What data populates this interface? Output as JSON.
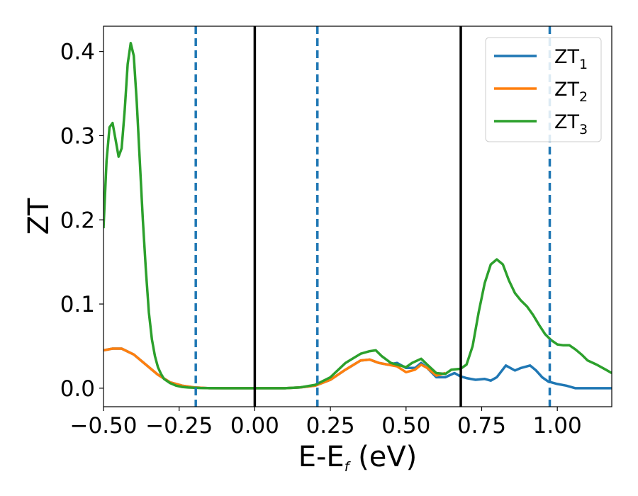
{
  "chart_data": {
    "type": "line",
    "xlabel": "E-E",
    "xlabel_sub": "f",
    "xlabel_unit": " (eV)",
    "ylabel": "ZT",
    "xlim": [
      -0.5,
      1.18
    ],
    "ylim": [
      -0.022,
      0.43
    ],
    "xticks": [
      -0.5,
      -0.25,
      0.0,
      0.25,
      0.5,
      0.75,
      1.0
    ],
    "xtick_labels": [
      "−0.50",
      "−0.25",
      "0.00",
      "0.25",
      "0.50",
      "0.75",
      "1.00"
    ],
    "yticks": [
      0.0,
      0.1,
      0.2,
      0.3,
      0.4
    ],
    "ytick_labels": [
      "0.0",
      "0.1",
      "0.2",
      "0.3",
      "0.4"
    ],
    "grid": false,
    "legend_position": "top-right",
    "vlines": [
      {
        "x": -0.195,
        "style": "dashed",
        "color": "#1f77b4"
      },
      {
        "x": 0.0,
        "style": "solid",
        "color": "#000000"
      },
      {
        "x": 0.207,
        "style": "dashed",
        "color": "#1f77b4"
      },
      {
        "x": 0.681,
        "style": "solid",
        "color": "#000000"
      },
      {
        "x": 0.975,
        "style": "dashed",
        "color": "#1f77b4"
      }
    ],
    "series": [
      {
        "name": "ZT",
        "name_sub": "1",
        "color": "#1f77b4",
        "x": [
          -0.5,
          -0.47,
          -0.44,
          -0.4,
          -0.36,
          -0.32,
          -0.28,
          -0.24,
          -0.2,
          -0.15,
          -0.1,
          -0.05,
          0.0,
          0.05,
          0.1,
          0.15,
          0.2,
          0.25,
          0.3,
          0.35,
          0.38,
          0.41,
          0.44,
          0.47,
          0.5,
          0.53,
          0.55,
          0.57,
          0.6,
          0.63,
          0.66,
          0.68,
          0.7,
          0.73,
          0.76,
          0.78,
          0.8,
          0.83,
          0.86,
          0.88,
          0.91,
          0.93,
          0.95,
          0.97,
          1.0,
          1.03,
          1.06,
          1.1,
          1.15,
          1.18
        ],
        "y": [
          0.045,
          0.047,
          0.047,
          0.04,
          0.028,
          0.016,
          0.007,
          0.003,
          0.001,
          0.0,
          0.0,
          0.0,
          0.0,
          0.0,
          0.0,
          0.001,
          0.003,
          0.01,
          0.022,
          0.033,
          0.034,
          0.03,
          0.028,
          0.03,
          0.024,
          0.024,
          0.03,
          0.024,
          0.013,
          0.013,
          0.018,
          0.014,
          0.012,
          0.01,
          0.011,
          0.009,
          0.013,
          0.027,
          0.021,
          0.024,
          0.027,
          0.021,
          0.013,
          0.008,
          0.005,
          0.003,
          0.0,
          0.0,
          0.0,
          0.0
        ]
      },
      {
        "name": "ZT",
        "name_sub": "2",
        "color": "#ff7f0e",
        "x": [
          -0.5,
          -0.47,
          -0.44,
          -0.4,
          -0.36,
          -0.32,
          -0.28,
          -0.24,
          -0.2,
          -0.15,
          -0.1,
          -0.05,
          0.0,
          0.05,
          0.1,
          0.15,
          0.2,
          0.25,
          0.3,
          0.35,
          0.38,
          0.41,
          0.44,
          0.47,
          0.5,
          0.53,
          0.55,
          0.57,
          0.6,
          0.63
        ],
        "y": [
          0.045,
          0.047,
          0.047,
          0.04,
          0.028,
          0.016,
          0.007,
          0.003,
          0.001,
          0.0,
          0.0,
          0.0,
          0.0,
          0.0,
          0.0,
          0.001,
          0.003,
          0.01,
          0.022,
          0.033,
          0.034,
          0.03,
          0.028,
          0.026,
          0.019,
          0.022,
          0.028,
          0.024,
          0.015,
          0.018
        ]
      },
      {
        "name": "ZT",
        "name_sub": "3",
        "color": "#2ca02c",
        "x": [
          -0.5,
          -0.49,
          -0.48,
          -0.47,
          -0.46,
          -0.45,
          -0.44,
          -0.43,
          -0.42,
          -0.41,
          -0.4,
          -0.39,
          -0.38,
          -0.37,
          -0.36,
          -0.35,
          -0.34,
          -0.33,
          -0.32,
          -0.31,
          -0.3,
          -0.28,
          -0.26,
          -0.24,
          -0.22,
          -0.2,
          -0.18,
          -0.15,
          -0.1,
          -0.05,
          0.0,
          0.05,
          0.1,
          0.15,
          0.2,
          0.25,
          0.3,
          0.35,
          0.38,
          0.4,
          0.42,
          0.45,
          0.48,
          0.5,
          0.52,
          0.55,
          0.57,
          0.6,
          0.63,
          0.65,
          0.68,
          0.7,
          0.72,
          0.74,
          0.76,
          0.78,
          0.8,
          0.82,
          0.84,
          0.86,
          0.88,
          0.9,
          0.92,
          0.94,
          0.96,
          0.98,
          1.0,
          1.02,
          1.04,
          1.06,
          1.08,
          1.1,
          1.13,
          1.16,
          1.18
        ],
        "y": [
          0.19,
          0.27,
          0.31,
          0.315,
          0.295,
          0.275,
          0.285,
          0.33,
          0.385,
          0.41,
          0.395,
          0.34,
          0.27,
          0.2,
          0.14,
          0.09,
          0.058,
          0.038,
          0.025,
          0.017,
          0.011,
          0.006,
          0.003,
          0.0015,
          0.0008,
          0.0005,
          0.0002,
          0.0001,
          0.0,
          0.0,
          0.0,
          0.0,
          0.0,
          0.001,
          0.004,
          0.013,
          0.03,
          0.041,
          0.044,
          0.045,
          0.038,
          0.03,
          0.027,
          0.025,
          0.03,
          0.035,
          0.028,
          0.018,
          0.017,
          0.022,
          0.023,
          0.028,
          0.05,
          0.09,
          0.125,
          0.147,
          0.153,
          0.147,
          0.128,
          0.113,
          0.104,
          0.097,
          0.087,
          0.075,
          0.064,
          0.057,
          0.052,
          0.051,
          0.051,
          0.046,
          0.04,
          0.033,
          0.028,
          0.022,
          0.018
        ]
      }
    ]
  }
}
